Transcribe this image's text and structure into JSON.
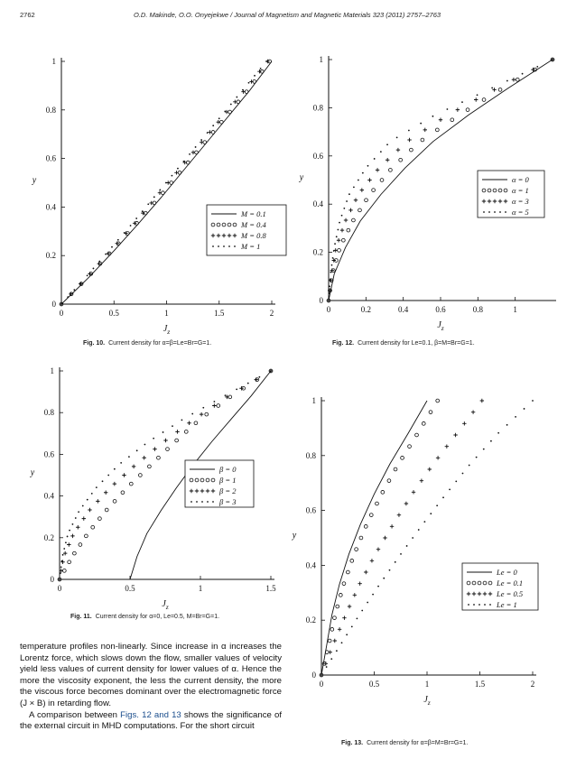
{
  "header": {
    "page_number": "2762",
    "journal_line": "O.D. Makinde, O.O. Onyejekwe / Journal of Magnetism and Magnetic Materials 323 (2011) 2757–2763"
  },
  "captions": {
    "fig10": {
      "label": "Fig. 10.",
      "text": "Current density for α=β=Le=Br=G=1."
    },
    "fig11": {
      "label": "Fig. 11.",
      "text": "Current density for α=0, Le=0.5, M=Br=G=1."
    },
    "fig12": {
      "label": "Fig. 12.",
      "text": "Current density for Le=0.1, β=M=Br=G=1."
    },
    "fig13": {
      "label": "Fig. 13.",
      "text": "Current density for α=β=M=Br=G=1."
    }
  },
  "body_text": {
    "p1": "temperature profiles non-linearly. Since increase in α increases the Lorentz force, which slows down the flow, smaller values of velocity yield less values of current density for lower values of α. Hence the more the viscosity exponent, the less the current density, the more the viscous force becomes dominant over the electromagnetic force (J × B) in retarding flow.",
    "p2_pre": "A comparison between ",
    "p2_link": "Figs. 12 and 13",
    "p2_post": " shows the significance of the external circuit in MHD computations. For the short circuit"
  },
  "chart_data": [
    {
      "id": "fig10",
      "type": "scatter",
      "xlabel": "Jz",
      "ylabel": "y",
      "xlim": [
        0,
        2
      ],
      "ylim": [
        0,
        1
      ],
      "xticks": [
        "0",
        "0.5",
        "1",
        "1.5",
        "2"
      ],
      "yticks": [
        "0",
        "0.2",
        "0.4",
        "0.6",
        "0.8",
        "1"
      ],
      "legend_position": "bottom-right",
      "series": [
        {
          "name": "M = 0.1",
          "style": "line",
          "x": [
            0,
            0.26,
            0.5,
            0.73,
            0.95,
            1.16,
            1.37,
            1.58,
            1.79,
            2.0
          ],
          "y": [
            0,
            0.11,
            0.22,
            0.33,
            0.44,
            0.55,
            0.66,
            0.77,
            0.88,
            1.0
          ]
        },
        {
          "name": "M = 0.4",
          "style": "circle",
          "x": [
            0,
            0.25,
            0.48,
            0.71,
            0.93,
            1.14,
            1.35,
            1.56,
            1.77,
            1.98
          ],
          "y": [
            0,
            0.11,
            0.22,
            0.33,
            0.44,
            0.55,
            0.66,
            0.77,
            0.88,
            1.0
          ]
        },
        {
          "name": "M = 0.8",
          "style": "plus",
          "x": [
            0,
            0.24,
            0.47,
            0.69,
            0.9,
            1.11,
            1.32,
            1.53,
            1.74,
            1.96
          ],
          "y": [
            0,
            0.11,
            0.22,
            0.33,
            0.44,
            0.55,
            0.66,
            0.77,
            0.88,
            1.0
          ]
        },
        {
          "name": "M = 1",
          "style": "dot",
          "x": [
            0,
            0.23,
            0.45,
            0.67,
            0.88,
            1.09,
            1.3,
            1.51,
            1.72,
            1.95
          ],
          "y": [
            0,
            0.11,
            0.22,
            0.33,
            0.44,
            0.55,
            0.66,
            0.77,
            0.88,
            1.0
          ]
        }
      ]
    },
    {
      "id": "fig11",
      "type": "scatter",
      "xlabel": "Jz",
      "ylabel": "y",
      "xlim": [
        0,
        1.5
      ],
      "ylim": [
        0,
        1
      ],
      "xticks": [
        "0",
        "0.5",
        "1",
        "1.5"
      ],
      "yticks": [
        "0",
        "0.2",
        "0.4",
        "0.6",
        "0.8",
        "1"
      ],
      "legend_position": "bottom-right",
      "series": [
        {
          "name": "β = 0",
          "style": "line",
          "x": [
            0.5,
            0.55,
            0.62,
            0.72,
            0.83,
            0.95,
            1.08,
            1.22,
            1.36,
            1.5
          ],
          "y": [
            0,
            0.11,
            0.22,
            0.33,
            0.44,
            0.55,
            0.66,
            0.77,
            0.88,
            1.0
          ]
        },
        {
          "name": "β = 1",
          "style": "circle",
          "x": [
            0,
            0.09,
            0.2,
            0.33,
            0.48,
            0.65,
            0.82,
            1.0,
            1.22,
            1.5
          ],
          "y": [
            0,
            0.11,
            0.22,
            0.33,
            0.44,
            0.55,
            0.66,
            0.77,
            0.88,
            1.0
          ]
        },
        {
          "name": "β = 2",
          "style": "plus",
          "x": [
            0,
            0.03,
            0.1,
            0.21,
            0.36,
            0.54,
            0.74,
            0.96,
            1.2,
            1.5
          ],
          "y": [
            0,
            0.11,
            0.22,
            0.33,
            0.44,
            0.55,
            0.66,
            0.77,
            0.88,
            1.0
          ]
        },
        {
          "name": "β = 3",
          "style": "dot",
          "x": [
            0,
            0.02,
            0.06,
            0.14,
            0.26,
            0.42,
            0.63,
            0.88,
            1.17,
            1.5
          ],
          "y": [
            0,
            0.11,
            0.22,
            0.33,
            0.44,
            0.55,
            0.66,
            0.77,
            0.88,
            1.0
          ]
        }
      ]
    },
    {
      "id": "fig12",
      "type": "scatter",
      "xlabel": "Jz",
      "ylabel": "y",
      "xlim": [
        0,
        1.2
      ],
      "ylim": [
        0,
        1
      ],
      "xticks": [
        "0",
        "0.2",
        "0.4",
        "0.6",
        "0.8",
        "1"
      ],
      "yticks": [
        "0",
        "0.2",
        "0.4",
        "0.6",
        "0.8",
        "1"
      ],
      "legend_position": "bottom-right",
      "series": [
        {
          "name": "α = 0",
          "style": "line",
          "x": [
            0,
            0.03,
            0.09,
            0.17,
            0.28,
            0.41,
            0.56,
            0.75,
            0.96,
            1.2
          ],
          "y": [
            0,
            0.11,
            0.22,
            0.33,
            0.44,
            0.55,
            0.66,
            0.77,
            0.88,
            1.0
          ]
        },
        {
          "name": "α = 1",
          "style": "circle",
          "x": [
            0,
            0.02,
            0.06,
            0.13,
            0.22,
            0.34,
            0.49,
            0.7,
            0.93,
            1.2
          ],
          "y": [
            0,
            0.11,
            0.22,
            0.33,
            0.44,
            0.55,
            0.66,
            0.77,
            0.88,
            1.0
          ]
        },
        {
          "name": "α = 3",
          "style": "plus",
          "x": [
            0,
            0.015,
            0.04,
            0.09,
            0.16,
            0.27,
            0.42,
            0.64,
            0.9,
            1.2
          ],
          "y": [
            0,
            0.11,
            0.22,
            0.33,
            0.44,
            0.55,
            0.66,
            0.77,
            0.88,
            1.0
          ]
        },
        {
          "name": "α = 5",
          "style": "dot",
          "x": [
            0,
            0.01,
            0.03,
            0.06,
            0.11,
            0.2,
            0.33,
            0.57,
            0.87,
            1.2
          ],
          "y": [
            0,
            0.11,
            0.22,
            0.33,
            0.44,
            0.55,
            0.66,
            0.77,
            0.88,
            1.0
          ]
        }
      ]
    },
    {
      "id": "fig13",
      "type": "scatter",
      "xlabel": "Jz",
      "ylabel": "y",
      "xlim": [
        0,
        2
      ],
      "ylim": [
        0,
        1
      ],
      "xticks": [
        "0",
        "0.5",
        "1",
        "1.5",
        "2"
      ],
      "yticks": [
        "0",
        "0.2",
        "0.4",
        "0.6",
        "0.8",
        "1"
      ],
      "legend_position": "bottom-right",
      "series": [
        {
          "name": "Le = 0",
          "style": "line",
          "x": [
            0,
            0.05,
            0.1,
            0.17,
            0.26,
            0.37,
            0.5,
            0.65,
            0.82,
            1.0
          ],
          "y": [
            0,
            0.11,
            0.22,
            0.33,
            0.44,
            0.55,
            0.66,
            0.77,
            0.88,
            1.0
          ]
        },
        {
          "name": "Le = 0.1",
          "style": "circle",
          "x": [
            0,
            0.07,
            0.13,
            0.21,
            0.31,
            0.43,
            0.57,
            0.73,
            0.91,
            1.1
          ],
          "y": [
            0,
            0.11,
            0.22,
            0.33,
            0.44,
            0.55,
            0.66,
            0.77,
            0.88,
            1.0
          ]
        },
        {
          "name": "Le = 0.5",
          "style": "plus",
          "x": [
            0,
            0.11,
            0.23,
            0.36,
            0.51,
            0.68,
            0.86,
            1.06,
            1.28,
            1.52
          ],
          "y": [
            0,
            0.11,
            0.22,
            0.33,
            0.44,
            0.55,
            0.66,
            0.77,
            0.88,
            1.0
          ]
        },
        {
          "name": "Le = 1",
          "style": "dot",
          "x": [
            0,
            0.18,
            0.36,
            0.55,
            0.75,
            0.96,
            1.18,
            1.41,
            1.67,
            2.0
          ],
          "y": [
            0,
            0.11,
            0.22,
            0.33,
            0.44,
            0.55,
            0.66,
            0.77,
            0.88,
            1.0
          ]
        }
      ]
    }
  ]
}
